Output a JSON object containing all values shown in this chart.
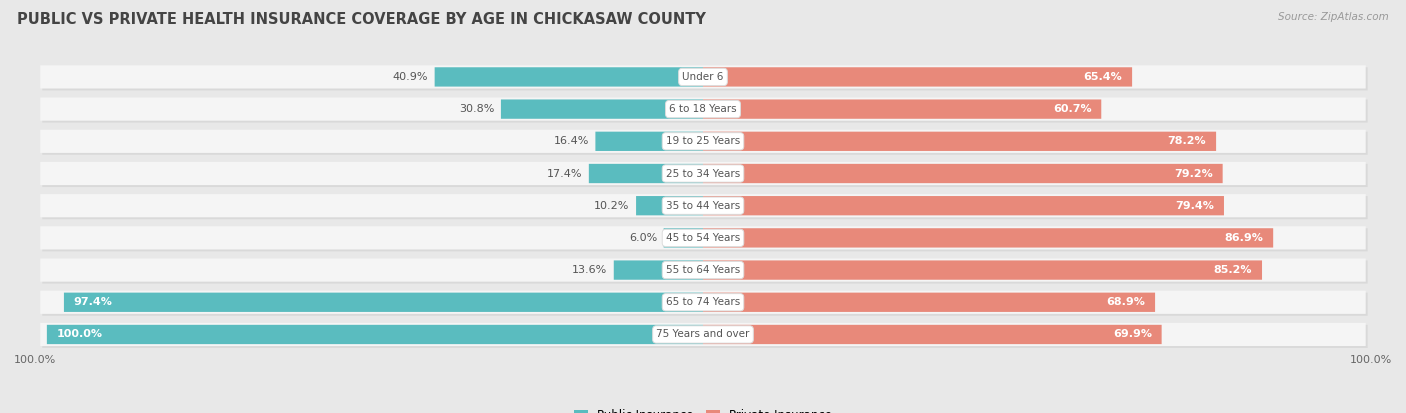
{
  "title": "PUBLIC VS PRIVATE HEALTH INSURANCE COVERAGE BY AGE IN CHICKASAW COUNTY",
  "source": "Source: ZipAtlas.com",
  "categories": [
    "Under 6",
    "6 to 18 Years",
    "19 to 25 Years",
    "25 to 34 Years",
    "35 to 44 Years",
    "45 to 54 Years",
    "55 to 64 Years",
    "65 to 74 Years",
    "75 Years and over"
  ],
  "public_values": [
    40.9,
    30.8,
    16.4,
    17.4,
    10.2,
    6.0,
    13.6,
    97.4,
    100.0
  ],
  "private_values": [
    65.4,
    60.7,
    78.2,
    79.2,
    79.4,
    86.9,
    85.2,
    68.9,
    69.9
  ],
  "public_color": "#5abcbf",
  "private_color": "#e8897a",
  "background_color": "#e8e8e8",
  "row_bg_color": "#f5f5f5",
  "title_fontsize": 10.5,
  "bar_value_fontsize": 8,
  "cat_label_fontsize": 7.5,
  "max_value": 100.0,
  "bottom_label": "100.0%"
}
